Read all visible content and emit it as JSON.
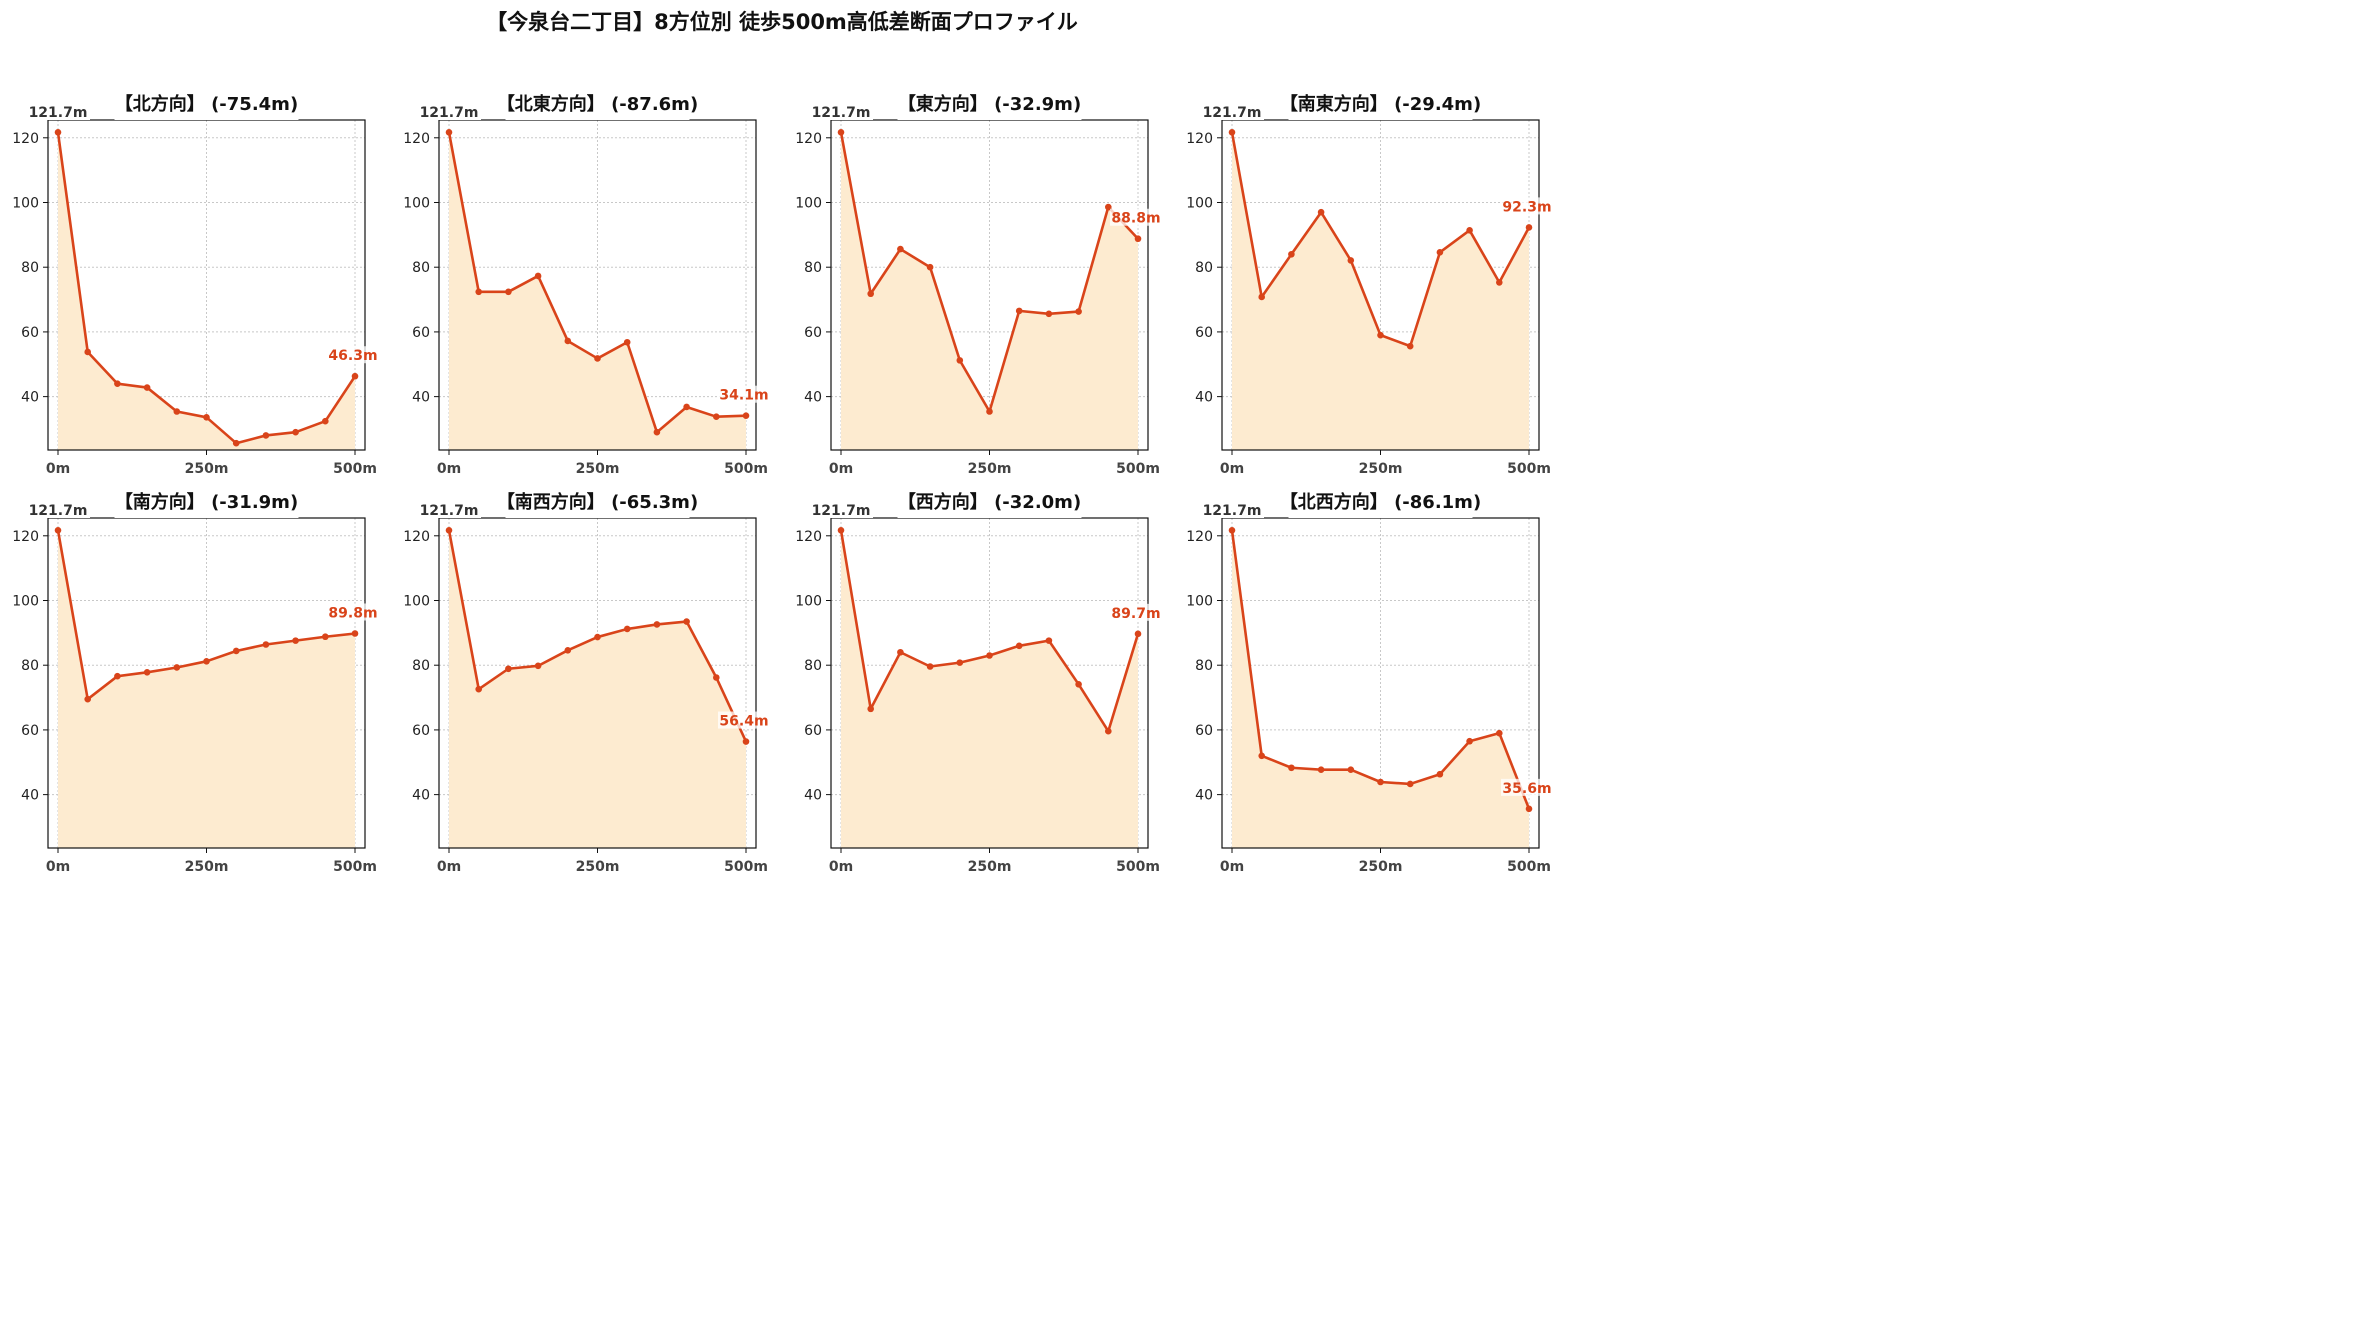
{
  "title": "【今泉台二丁目】8方位別 徒歩500m高低差断面プロファイル",
  "colors": {
    "line": "#d9441a",
    "fill": "#fdebd0",
    "grid": "#c8c8c8",
    "axis": "#111111",
    "tick_text": "#444444"
  },
  "chart_data": [
    {
      "type": "area",
      "title": "【北方向】 (-75.4m)",
      "start_label": "121.7m",
      "end_label": "46.3m",
      "x": [
        0,
        50,
        100,
        150,
        200,
        250,
        300,
        350,
        400,
        450,
        500
      ],
      "y": [
        121.7,
        53.8,
        44.0,
        42.8,
        35.4,
        33.6,
        25.6,
        28.0,
        29.0,
        32.4,
        46.3
      ],
      "xticks": [
        "0m",
        "250m",
        "500m"
      ],
      "yticks": [
        40,
        60,
        80,
        100,
        120
      ],
      "ylim": [
        23.5,
        125.5
      ],
      "grid": true
    },
    {
      "type": "area",
      "title": "【北東方向】 (-87.6m)",
      "start_label": "121.7m",
      "end_label": "34.1m",
      "x": [
        0,
        50,
        100,
        150,
        200,
        250,
        300,
        350,
        400,
        450,
        500
      ],
      "y": [
        121.7,
        72.4,
        72.4,
        77.3,
        57.2,
        51.8,
        56.8,
        29.0,
        36.8,
        33.8,
        34.1
      ],
      "xticks": [
        "0m",
        "250m",
        "500m"
      ],
      "yticks": [
        40,
        60,
        80,
        100,
        120
      ],
      "ylim": [
        23.5,
        125.5
      ],
      "grid": true
    },
    {
      "type": "area",
      "title": "【東方向】 (-32.9m)",
      "start_label": "121.7m",
      "end_label": "88.8m",
      "x": [
        0,
        50,
        100,
        150,
        200,
        250,
        300,
        350,
        400,
        450,
        500
      ],
      "y": [
        121.7,
        71.8,
        85.6,
        80.0,
        51.2,
        35.4,
        66.5,
        65.6,
        66.3,
        98.6,
        88.8
      ],
      "xticks": [
        "0m",
        "250m",
        "500m"
      ],
      "yticks": [
        40,
        60,
        80,
        100,
        120
      ],
      "ylim": [
        23.5,
        125.5
      ],
      "grid": true
    },
    {
      "type": "area",
      "title": "【南東方向】 (-29.4m)",
      "start_label": "121.7m",
      "end_label": "92.3m",
      "x": [
        0,
        50,
        100,
        150,
        200,
        250,
        300,
        350,
        400,
        450,
        500
      ],
      "y": [
        121.7,
        70.8,
        84.0,
        97.0,
        82.1,
        59.0,
        55.6,
        84.6,
        91.4,
        75.3,
        92.3
      ],
      "xticks": [
        "0m",
        "250m",
        "500m"
      ],
      "yticks": [
        40,
        60,
        80,
        100,
        120
      ],
      "ylim": [
        23.5,
        125.5
      ],
      "grid": true
    },
    {
      "type": "area",
      "title": "【南方向】 (-31.9m)",
      "start_label": "121.7m",
      "end_label": "89.8m",
      "x": [
        0,
        50,
        100,
        150,
        200,
        250,
        300,
        350,
        400,
        450,
        500
      ],
      "y": [
        121.7,
        69.5,
        76.6,
        77.8,
        79.3,
        81.2,
        84.4,
        86.4,
        87.6,
        88.8,
        89.8
      ],
      "xticks": [
        "0m",
        "250m",
        "500m"
      ],
      "yticks": [
        40,
        60,
        80,
        100,
        120
      ],
      "ylim": [
        23.5,
        125.5
      ],
      "grid": true
    },
    {
      "type": "area",
      "title": "【南西方向】 (-65.3m)",
      "start_label": "121.7m",
      "end_label": "56.4m",
      "x": [
        0,
        50,
        100,
        150,
        200,
        250,
        300,
        350,
        400,
        450,
        500
      ],
      "y": [
        121.7,
        72.6,
        78.9,
        79.8,
        84.6,
        88.7,
        91.2,
        92.6,
        93.5,
        76.2,
        56.4
      ],
      "xticks": [
        "0m",
        "250m",
        "500m"
      ],
      "yticks": [
        40,
        60,
        80,
        100,
        120
      ],
      "ylim": [
        23.5,
        125.5
      ],
      "grid": true
    },
    {
      "type": "area",
      "title": "【西方向】 (-32.0m)",
      "start_label": "121.7m",
      "end_label": "89.7m",
      "x": [
        0,
        50,
        100,
        150,
        200,
        250,
        300,
        350,
        400,
        450,
        500
      ],
      "y": [
        121.7,
        66.5,
        84.0,
        79.6,
        80.8,
        83.0,
        86.0,
        87.6,
        74.1,
        59.6,
        89.7
      ],
      "xticks": [
        "0m",
        "250m",
        "500m"
      ],
      "yticks": [
        40,
        60,
        80,
        100,
        120
      ],
      "ylim": [
        23.5,
        125.5
      ],
      "grid": true
    },
    {
      "type": "area",
      "title": "【北西方向】 (-86.1m)",
      "start_label": "121.7m",
      "end_label": "35.6m",
      "x": [
        0,
        50,
        100,
        150,
        200,
        250,
        300,
        350,
        400,
        450,
        500
      ],
      "y": [
        121.7,
        52.0,
        48.3,
        47.7,
        47.7,
        43.9,
        43.3,
        46.3,
        56.5,
        59.0,
        35.6
      ],
      "xticks": [
        "0m",
        "250m",
        "500m"
      ],
      "yticks": [
        40,
        60,
        80,
        100,
        120
      ],
      "ylim": [
        23.5,
        125.5
      ],
      "grid": true
    }
  ]
}
